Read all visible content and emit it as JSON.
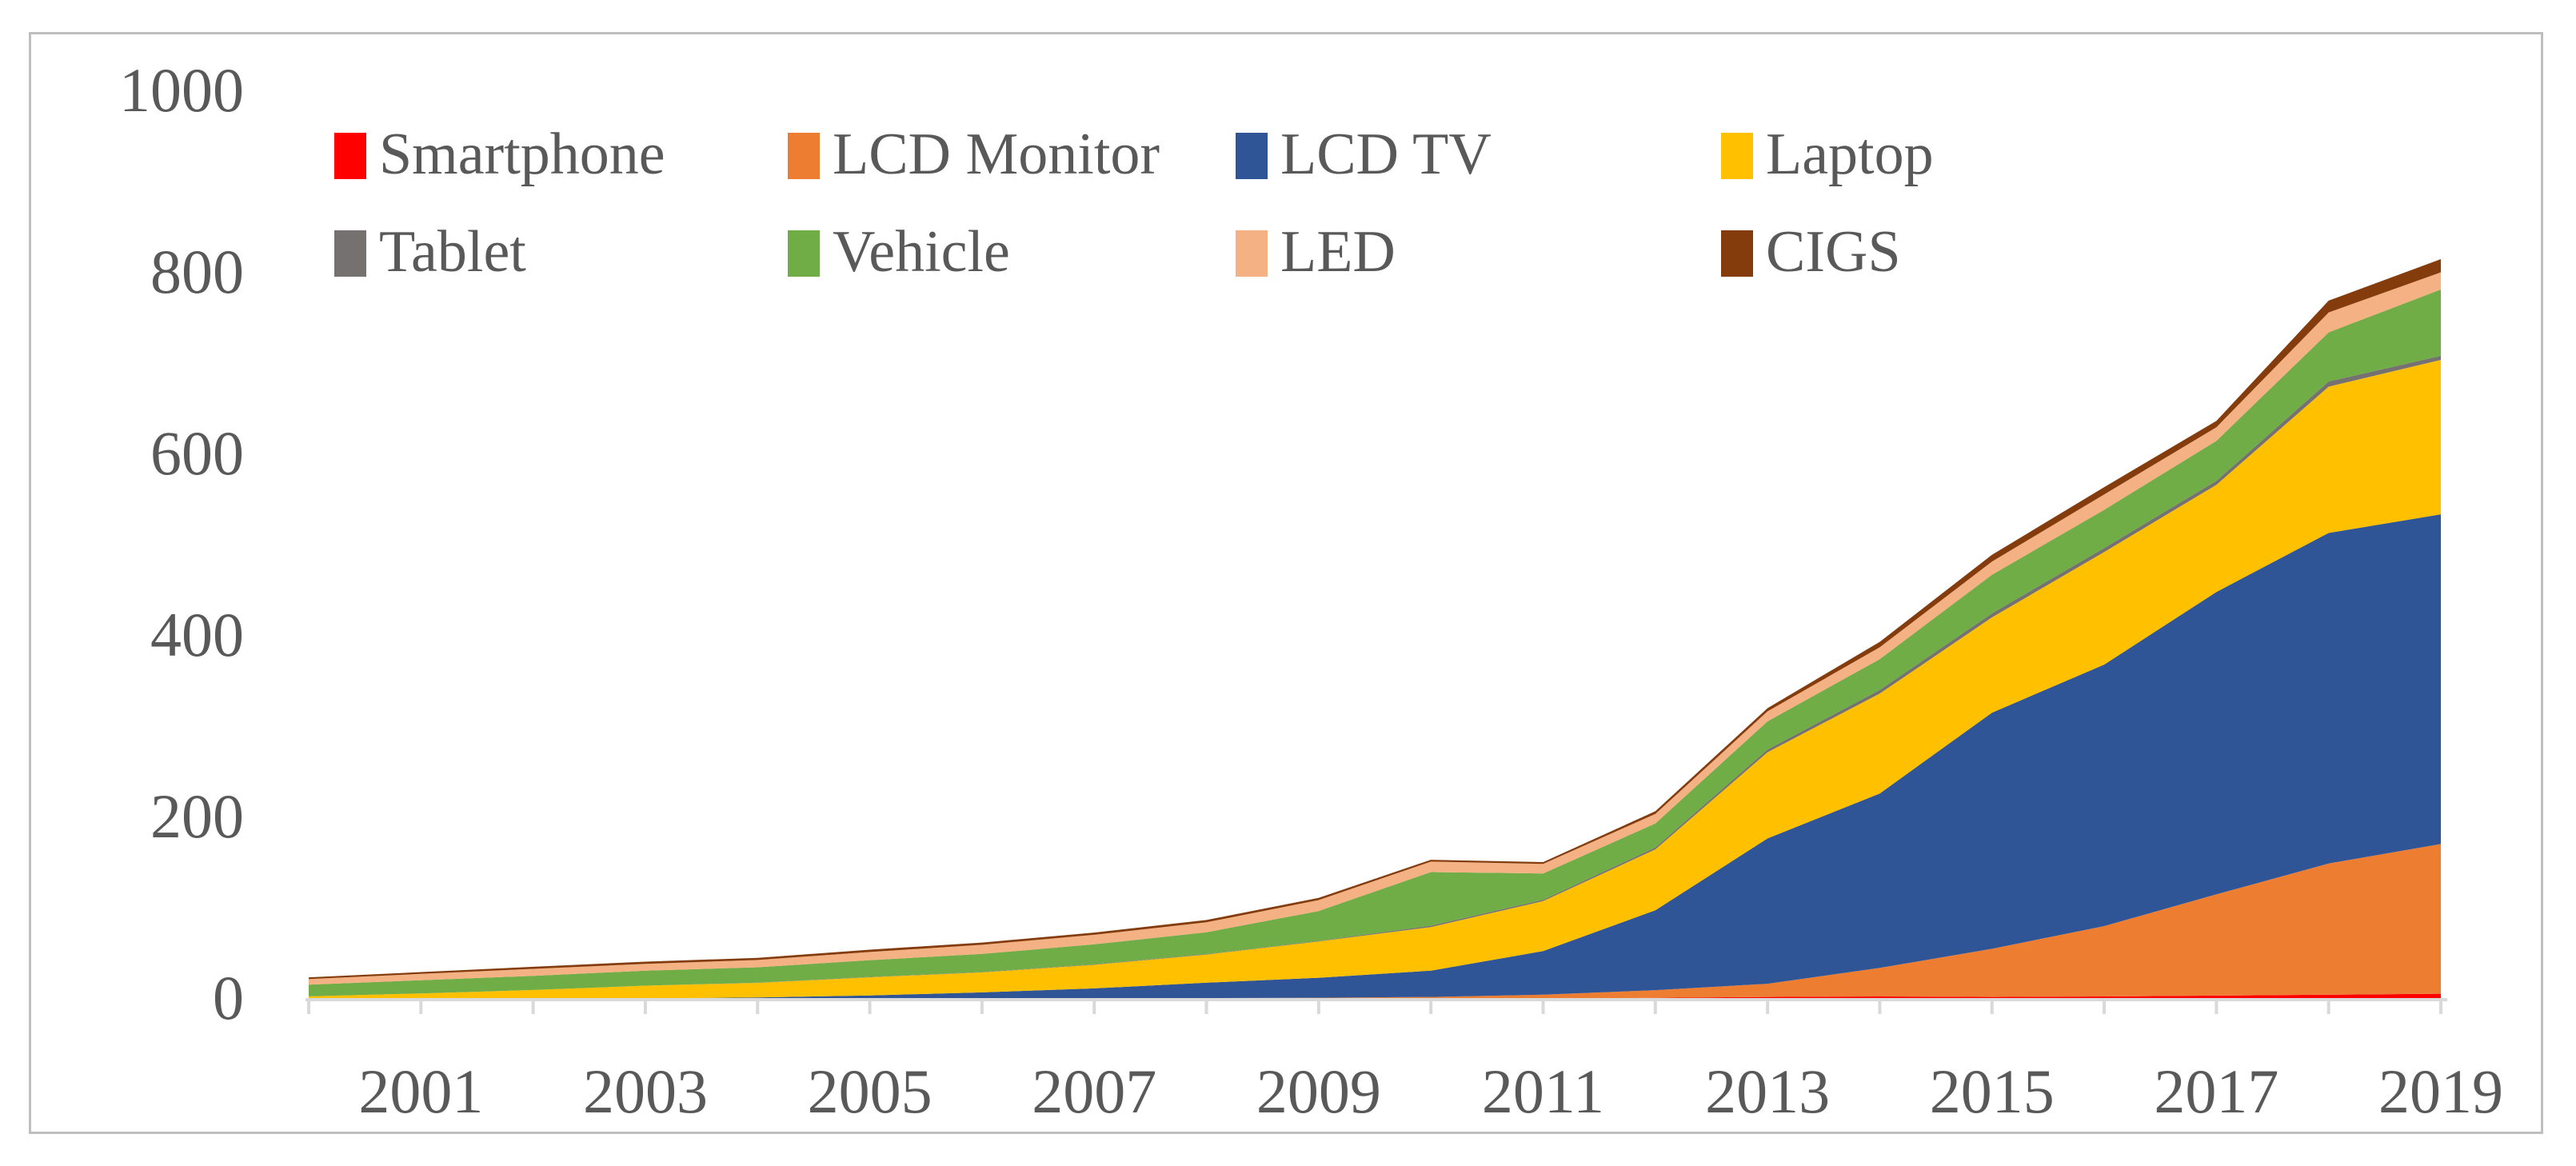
{
  "figure": {
    "background": "#FFFFFF",
    "frame_color": "#BFBFBF",
    "text_color": "#595959",
    "axis_line_color": "#D9D9D9"
  },
  "axes": {
    "y": {
      "tick_labels": [
        "0",
        "200",
        "400",
        "600",
        "800",
        "1000"
      ],
      "tick_values": [
        0,
        200,
        400,
        600,
        800,
        1000
      ],
      "range": [
        0,
        1000
      ]
    },
    "x": {
      "tick_labels": [
        "2001",
        "2003",
        "2005",
        "2007",
        "2009",
        "2011",
        "2013",
        "2015",
        "2017",
        "2019"
      ],
      "labeled_years": [
        2001,
        2003,
        2005,
        2007,
        2009,
        2011,
        2013,
        2015,
        2017,
        2019
      ],
      "minor_tick_years_start": 2000,
      "minor_tick_years_end": 2019,
      "range": [
        2000,
        2019
      ]
    }
  },
  "chart_data": {
    "type": "area",
    "stacked": true,
    "grid": false,
    "legend_position": "top-left-two-rows",
    "title": "",
    "xlabel": "",
    "ylabel": "",
    "ylim": [
      0,
      1000
    ],
    "x": [
      2000,
      2001,
      2002,
      2003,
      2004,
      2005,
      2006,
      2007,
      2008,
      2009,
      2010,
      2011,
      2012,
      2013,
      2014,
      2015,
      2016,
      2017,
      2018,
      2019
    ],
    "series": [
      {
        "name": "Smartphone",
        "color": "#FF0000",
        "values": [
          0,
          0,
          0,
          0,
          0,
          0,
          0,
          0.2,
          0.3,
          0.5,
          1,
          1,
          2,
          3,
          3.5,
          3,
          3.5,
          4.5,
          5.5,
          6.5
        ]
      },
      {
        "name": "LCD Monitor",
        "color": "#ED7D31",
        "values": [
          0.1,
          0.2,
          0.3,
          0.4,
          0.5,
          0.7,
          1,
          1.2,
          1.4,
          1.6,
          2,
          4.5,
          8.5,
          14.5,
          31.5,
          53,
          77.5,
          111.5,
          144.5,
          165
        ]
      },
      {
        "name": "LCD TV",
        "color": "#2F5597",
        "values": [
          0,
          0.2,
          0.4,
          1,
          2,
          4,
          7,
          11,
          17,
          22,
          29,
          48,
          88,
          160,
          192,
          260,
          288,
          333,
          364,
          363
        ]
      },
      {
        "name": "Laptop",
        "color": "#FFC000",
        "values": [
          3.5,
          6.5,
          10,
          14,
          16,
          20,
          22,
          26,
          31,
          40,
          48,
          55,
          67,
          95,
          110,
          105,
          124,
          118,
          161,
          170
        ]
      },
      {
        "name": "Tablet",
        "color": "#767171",
        "values": [
          0,
          0,
          0,
          0,
          0.2,
          0.3,
          0.4,
          0.5,
          0.5,
          0.5,
          1.5,
          1.5,
          2,
          3,
          4,
          4.4,
          4.4,
          4.4,
          5.8,
          4.5
        ]
      },
      {
        "name": "Vehicle",
        "color": "#70AD47",
        "values": [
          13,
          14.5,
          15.5,
          16.5,
          17,
          18.5,
          20,
          22,
          24,
          33,
          59,
          29,
          26.5,
          31,
          34,
          42.5,
          42,
          44,
          54,
          73
        ]
      },
      {
        "name": "LED",
        "color": "#F4B183",
        "values": [
          6,
          7,
          7.7,
          7.5,
          8,
          9,
          10,
          10.5,
          11,
          12,
          11.5,
          10.5,
          10.5,
          11,
          13,
          14.5,
          17,
          15,
          22,
          19
        ]
      },
      {
        "name": "CIGS",
        "color": "#843C0C",
        "values": [
          2,
          2,
          2.3,
          2.4,
          2.4,
          2.5,
          2.5,
          2.5,
          2.5,
          2.5,
          2,
          2,
          3,
          3.5,
          6,
          7.4,
          8,
          7,
          13,
          14.5
        ]
      }
    ]
  }
}
